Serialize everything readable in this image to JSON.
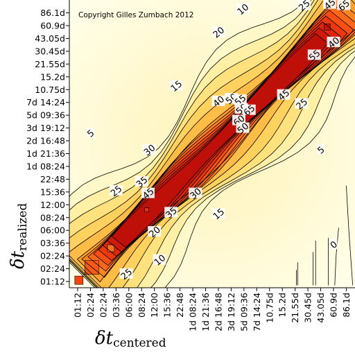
{
  "chart_data": {
    "type": "heatmap",
    "title": "",
    "copyright": "Copyright Gilles Zumbach 2012",
    "xlabel": {
      "symbol": "δt",
      "subscript": "centered"
    },
    "ylabel": {
      "symbol": "δt",
      "subscript": "realized"
    },
    "x_tick_labels": [
      "01:12",
      "02:24",
      "02:24",
      "03:36",
      "06:00",
      "08:24",
      "12:00",
      "15:36",
      "22:48",
      "1d 08:24",
      "1d 21:36",
      "2d 16:48",
      "3d 19:12",
      "5d 09:36",
      "7d 14:24",
      "10.75d",
      "15.2d",
      "21.55d",
      "30.45d",
      "43.05d",
      "60.9d",
      "86.1d"
    ],
    "y_tick_labels": [
      "01:12",
      "02:24",
      "02:24",
      "03:36",
      "06:00",
      "08:24",
      "12:00",
      "15:36",
      "22:48",
      "1d 08:24",
      "1d 21:36",
      "2d 16:48",
      "3d 19:12",
      "5d 09:36",
      "7d 14:24",
      "10.75d",
      "15.2d",
      "21.55d",
      "30.45d",
      "43.05d",
      "60.9d",
      "86.1d"
    ],
    "contour_levels": [
      0,
      5,
      10,
      15,
      20,
      25,
      30,
      35,
      40,
      45,
      50,
      55,
      60,
      65
    ],
    "contour_labels": [
      {
        "text": "10",
        "x": 12.9,
        "y": 21.3
      },
      {
        "text": "25",
        "x": 17.7,
        "y": 21.6
      },
      {
        "text": "45",
        "x": 19.7,
        "y": 21.7
      },
      {
        "text": "65",
        "x": 20.8,
        "y": 21.6
      },
      {
        "text": "20",
        "x": 11.0,
        "y": 19.5
      },
      {
        "text": "40",
        "x": 20.0,
        "y": 18.7
      },
      {
        "text": "55",
        "x": 18.5,
        "y": 17.7
      },
      {
        "text": "15",
        "x": 7.7,
        "y": 15.3
      },
      {
        "text": "40",
        "x": 11.0,
        "y": 14.1
      },
      {
        "text": "50",
        "x": 12.0,
        "y": 14.3
      },
      {
        "text": "55",
        "x": 12.7,
        "y": 14.2
      },
      {
        "text": "45",
        "x": 16.1,
        "y": 14.6
      },
      {
        "text": "50",
        "x": 12.8,
        "y": 13.5
      },
      {
        "text": "65",
        "x": 13.4,
        "y": 13.4
      },
      {
        "text": "60",
        "x": 12.6,
        "y": 12.6
      },
      {
        "text": "50",
        "x": 12.9,
        "y": 12.0
      },
      {
        "text": "25",
        "x": 17.5,
        "y": 13.9
      },
      {
        "text": "5",
        "x": 1.0,
        "y": 11.6
      },
      {
        "text": "30",
        "x": 5.6,
        "y": 10.3
      },
      {
        "text": "35",
        "x": 5.0,
        "y": 7.8
      },
      {
        "text": "45",
        "x": 5.5,
        "y": 6.9
      },
      {
        "text": "25",
        "x": 3.0,
        "y": 7.1
      },
      {
        "text": "35",
        "x": 7.3,
        "y": 5.4
      },
      {
        "text": "30",
        "x": 9.2,
        "y": 6.9
      },
      {
        "text": "15",
        "x": 11.0,
        "y": 5.3
      },
      {
        "text": "5",
        "x": 19.0,
        "y": 10.3
      },
      {
        "text": "20",
        "x": 6.0,
        "y": 3.9
      },
      {
        "text": "10",
        "x": 6.4,
        "y": 1.7
      },
      {
        "text": "25",
        "x": 3.8,
        "y": 0.6
      },
      {
        "text": "0",
        "x": 20.0,
        "y": 2.9
      }
    ]
  }
}
